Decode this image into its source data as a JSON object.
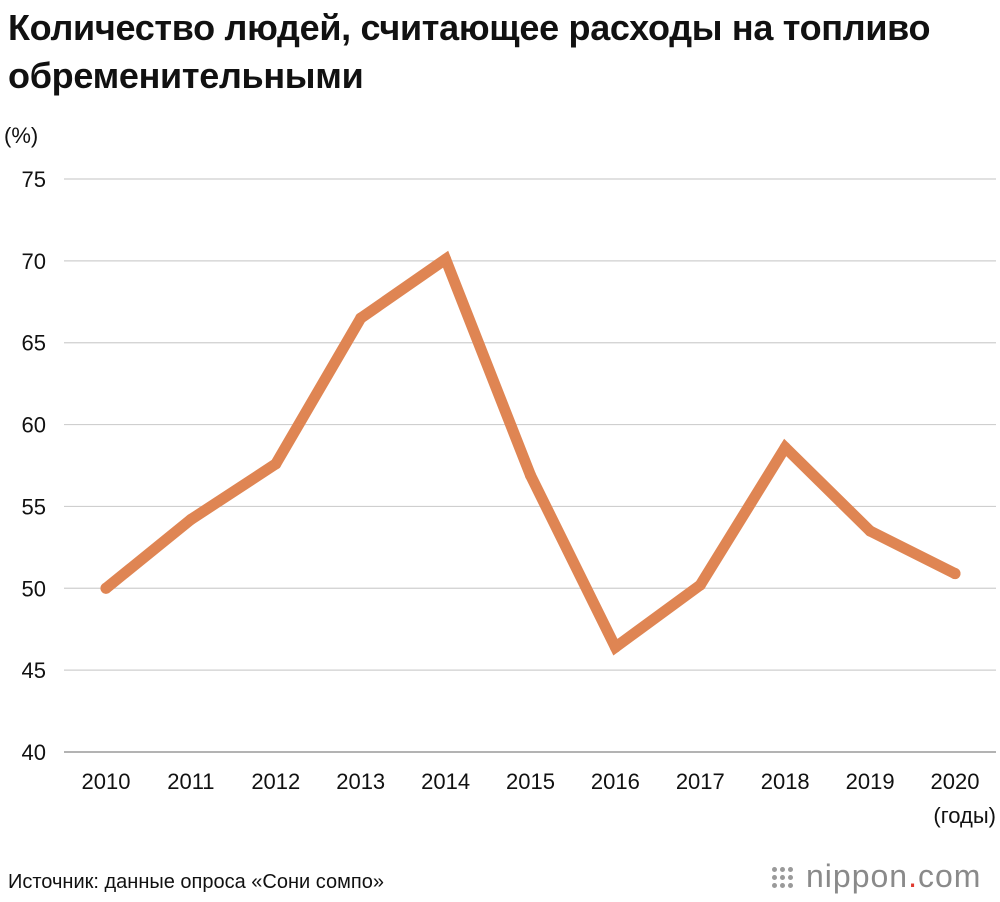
{
  "title": "Количество людей, считающее расходы на топливо обременительными",
  "source": "Источник: данные опроса «Сони сомпо»",
  "logo": {
    "name": "nippon",
    "dot": ".",
    "domain": "com",
    "dot_color": "#e03a2f"
  },
  "chart_data": {
    "type": "line",
    "title": "Количество людей, считающее расходы на топливо обременительными",
    "ylabel": "(%)",
    "xlabel": "(годы)",
    "categories": [
      "2010",
      "2011",
      "2012",
      "2013",
      "2014",
      "2015",
      "2016",
      "2017",
      "2018",
      "2019",
      "2020"
    ],
    "values": [
      50.0,
      54.2,
      57.6,
      66.5,
      70.1,
      56.9,
      46.4,
      50.2,
      58.6,
      53.5,
      50.9
    ],
    "ylim": [
      40,
      75
    ],
    "yticks": [
      75,
      70,
      65,
      60,
      55,
      50,
      45,
      40
    ],
    "grid": true,
    "line_color": "#df8553",
    "grid_color": "#cfcfcf"
  }
}
